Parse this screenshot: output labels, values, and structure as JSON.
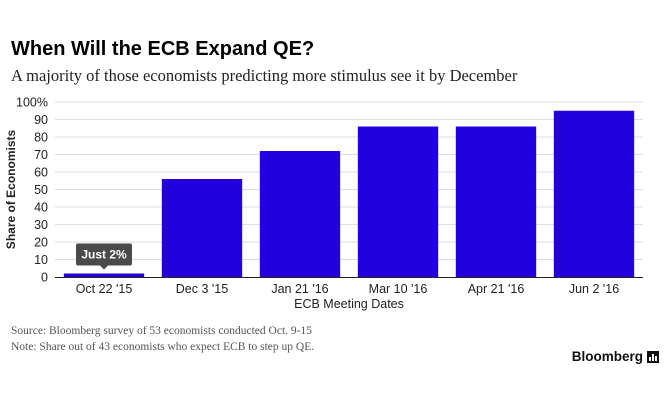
{
  "header": {
    "title": "When Will the ECB Expand QE?",
    "subtitle": "A majority of those economists predicting more stimulus see it by December"
  },
  "chart_data": {
    "type": "bar",
    "categories": [
      "Oct 22 '15",
      "Dec 3 '15",
      "Jan 21 '16",
      "Mar 10 '16",
      "Apr 21 '16",
      "Jun 2 '16"
    ],
    "values": [
      2,
      56,
      72,
      86,
      86,
      95
    ],
    "xlabel": "ECB Meeting Dates",
    "ylabel": "Share of Economists",
    "ylim": [
      0,
      100
    ],
    "yticks": [
      "0",
      "10",
      "20",
      "30",
      "40",
      "50",
      "60",
      "70",
      "80",
      "90",
      "100%"
    ],
    "grid": true,
    "bar_color": "#2200dd",
    "annotations": [
      {
        "category": "Oct 22 '15",
        "text": "Just 2%"
      }
    ]
  },
  "footer": {
    "source": "Source: Bloomberg survey of 53 economists conducted Oct. 9-15",
    "note": "Note: Share out of 43 economists who expect ECB to step up QE.",
    "brand": "Bloomberg",
    "brand_icon": "bloomberg-bars-icon"
  }
}
